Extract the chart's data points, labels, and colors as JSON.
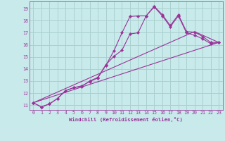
{
  "xlabel": "Windchill (Refroidissement éolien,°C)",
  "xlim": [
    -0.5,
    23.5
  ],
  "ylim": [
    10.6,
    19.6
  ],
  "xticks": [
    0,
    1,
    2,
    3,
    4,
    5,
    6,
    7,
    8,
    9,
    10,
    11,
    12,
    13,
    14,
    15,
    16,
    17,
    18,
    19,
    20,
    21,
    22,
    23
  ],
  "yticks": [
    11,
    12,
    13,
    14,
    15,
    16,
    17,
    18,
    19
  ],
  "background_color": "#c8eaea",
  "grid_color": "#aad0d0",
  "line_color": "#993399",
  "lines": [
    {
      "x": [
        0,
        1,
        2,
        3,
        4,
        5,
        6,
        7,
        8,
        9,
        10,
        11,
        12,
        13,
        14,
        15,
        16,
        17,
        18,
        19,
        20,
        21,
        22,
        23
      ],
      "y": [
        11.2,
        10.85,
        11.1,
        11.55,
        12.2,
        12.45,
        12.55,
        13.0,
        13.3,
        14.35,
        15.05,
        15.55,
        16.9,
        17.0,
        18.4,
        19.2,
        18.5,
        17.6,
        18.5,
        17.1,
        17.05,
        16.7,
        16.2,
        16.2
      ],
      "markers": true
    },
    {
      "x": [
        0,
        1,
        2,
        3,
        4,
        5,
        6,
        7,
        8,
        9,
        10,
        11,
        12,
        13,
        14,
        15,
        16,
        17,
        18,
        19,
        20,
        21,
        22,
        23
      ],
      "y": [
        11.2,
        10.85,
        11.1,
        11.55,
        12.2,
        12.45,
        12.6,
        12.95,
        13.25,
        14.3,
        15.5,
        17.0,
        18.35,
        18.4,
        18.4,
        19.15,
        18.4,
        17.5,
        18.4,
        17.0,
        16.8,
        16.5,
        16.1,
        16.2
      ],
      "markers": true
    },
    {
      "x": [
        0,
        23
      ],
      "y": [
        11.2,
        16.2
      ],
      "markers": false
    },
    {
      "x": [
        0,
        20,
        23
      ],
      "y": [
        11.2,
        17.1,
        16.2
      ],
      "markers": false
    }
  ]
}
